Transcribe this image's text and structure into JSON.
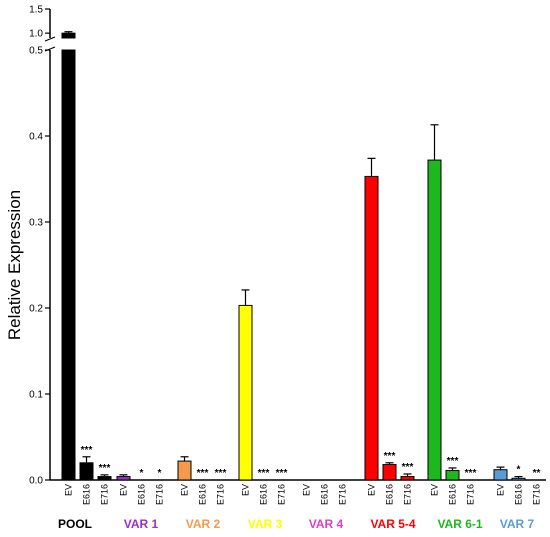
{
  "chart_data": {
    "type": "bar",
    "ylabel": "Relative Expression",
    "y_ticks_lower": [
      "0.0",
      "0.1",
      "0.2",
      "0.3",
      "0.4",
      "0.5"
    ],
    "y_ticks_upper": [
      "1.0",
      "1.5"
    ],
    "ylim_lower": [
      0,
      0.5
    ],
    "ylim_upper": [
      0.9,
      1.5
    ],
    "axis_break": true,
    "conditions": [
      "EV",
      "E616",
      "E716"
    ],
    "groups": [
      {
        "name": "POOL",
        "color": "#000000",
        "values": [
          1.0,
          0.02,
          0.004
        ],
        "errors": [
          0.03,
          0.007,
          0.002
        ],
        "sig": [
          "",
          "***",
          "***"
        ]
      },
      {
        "name": "VAR 1",
        "color": "#9b30c8",
        "values": [
          0.004,
          0.0,
          0.0
        ],
        "errors": [
          0.002,
          0.0,
          0.0
        ],
        "sig": [
          "",
          "*",
          "*"
        ]
      },
      {
        "name": "VAR 2",
        "color": "#f59a4a",
        "values": [
          0.022,
          0.0,
          0.0
        ],
        "errors": [
          0.005,
          0.0,
          0.0
        ],
        "sig": [
          "",
          "***",
          "***"
        ]
      },
      {
        "name": "VAR 3",
        "color": "#ffff00",
        "values": [
          0.203,
          0.0,
          0.0
        ],
        "errors": [
          0.018,
          0.0,
          0.0
        ],
        "sig": [
          "",
          "***",
          "***"
        ]
      },
      {
        "name": "VAR 4",
        "color": "#e040c0",
        "values": [
          0.0,
          0.0,
          0.0
        ],
        "errors": [
          0.0,
          0.0,
          0.0
        ],
        "sig": [
          "",
          "",
          ""
        ]
      },
      {
        "name": "VAR 5-4",
        "color": "#ff0000",
        "values": [
          0.353,
          0.018,
          0.004
        ],
        "errors": [
          0.021,
          0.002,
          0.003
        ],
        "sig": [
          "",
          "***",
          "***"
        ]
      },
      {
        "name": "VAR 6-1",
        "color": "#1db81d",
        "values": [
          0.372,
          0.011,
          0.0
        ],
        "errors": [
          0.041,
          0.003,
          0.0
        ],
        "sig": [
          "",
          "***",
          "***"
        ]
      },
      {
        "name": "VAR 7",
        "color": "#5b9bd5",
        "values": [
          0.012,
          0.002,
          0.0
        ],
        "errors": [
          0.003,
          0.002,
          0.0
        ],
        "sig": [
          "",
          "*",
          "**"
        ]
      }
    ]
  }
}
